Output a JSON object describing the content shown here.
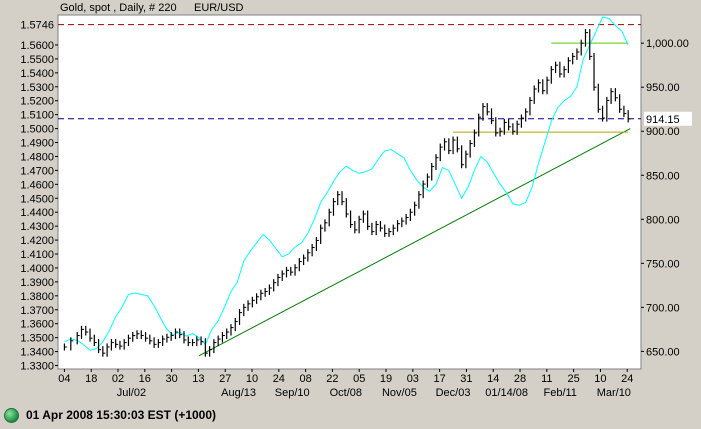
{
  "chart_data": {
    "type": "line",
    "title_symbol": "Gold, spot , Daily, # 220",
    "title_overlay": "EUR/USD",
    "left_axis": {
      "ylim": [
        1.3275,
        1.5815
      ],
      "ticks": [
        "1.5600",
        "1.5500",
        "1.5400",
        "1.5300",
        "1.5200",
        "1.5100",
        "1.5000",
        "1.4900",
        "1.4800",
        "1.4700",
        "1.4600",
        "1.4500",
        "1.4400",
        "1.4300",
        "1.4200",
        "1.4100",
        "1.4000",
        "1.3900",
        "1.3800",
        "1.3700",
        "1.3600",
        "1.3500",
        "1.3400",
        "1.3300"
      ],
      "highlight_label": "1.5746",
      "highlight_value": 1.5746
    },
    "right_axis": {
      "ylim": [
        630,
        1032
      ],
      "ticks": [
        "1,000.00",
        "950.00",
        "900.00",
        "850.00",
        "800.00",
        "750.00",
        "700.00",
        "650.00"
      ],
      "highlight_label": "914.15",
      "highlight_value": 914.15
    },
    "x_ticks": [
      "04",
      "18",
      "02",
      "16",
      "30",
      "13",
      "27",
      "10",
      "24",
      "08",
      "22",
      "05",
      "19",
      "03",
      "17",
      "31",
      "14",
      "28",
      "11",
      "25",
      "10",
      "24"
    ],
    "x_month_labels": [
      "Jul/02",
      "Aug/13",
      "Sep/10",
      "Oct/08",
      "Nov/05",
      "Dec/03",
      "01/14/08",
      "Feb/11",
      "Mar/10"
    ],
    "series": [
      {
        "name": "Gold, spot",
        "color": "#000000",
        "axis": "right",
        "points": [
          [
            0,
            655
          ],
          [
            3,
            662
          ],
          [
            6,
            668
          ],
          [
            8,
            675
          ],
          [
            10,
            672
          ],
          [
            12,
            665
          ],
          [
            14,
            660
          ],
          [
            16,
            652
          ],
          [
            18,
            648
          ],
          [
            20,
            655
          ],
          [
            22,
            660
          ],
          [
            24,
            658
          ],
          [
            26,
            656
          ],
          [
            28,
            660
          ],
          [
            30,
            665
          ],
          [
            32,
            668
          ],
          [
            34,
            670
          ],
          [
            36,
            668
          ],
          [
            38,
            665
          ],
          [
            40,
            662
          ],
          [
            42,
            658
          ],
          [
            44,
            660
          ],
          [
            46,
            664
          ],
          [
            48,
            666
          ],
          [
            50,
            668
          ],
          [
            52,
            672
          ],
          [
            54,
            669
          ],
          [
            56,
            663
          ],
          [
            58,
            660
          ],
          [
            60,
            660
          ],
          [
            62,
            663
          ],
          [
            64,
            661
          ],
          [
            66,
            648
          ],
          [
            68,
            652
          ],
          [
            70,
            660
          ],
          [
            72,
            664
          ],
          [
            74,
            668
          ],
          [
            76,
            672
          ],
          [
            78,
            677
          ],
          [
            80,
            684
          ],
          [
            82,
            694
          ],
          [
            84,
            700
          ],
          [
            86,
            704
          ],
          [
            88,
            708
          ],
          [
            90,
            712
          ],
          [
            92,
            716
          ],
          [
            94,
            718
          ],
          [
            96,
            722
          ],
          [
            98,
            728
          ],
          [
            100,
            734
          ],
          [
            102,
            738
          ],
          [
            104,
            742
          ],
          [
            106,
            740
          ],
          [
            108,
            745
          ],
          [
            110,
            752
          ],
          [
            112,
            756
          ],
          [
            114,
            762
          ],
          [
            116,
            768
          ],
          [
            118,
            776
          ],
          [
            120,
            790
          ],
          [
            122,
            796
          ],
          [
            124,
            808
          ],
          [
            126,
            820
          ],
          [
            128,
            828
          ],
          [
            130,
            820
          ],
          [
            132,
            806
          ],
          [
            134,
            794
          ],
          [
            136,
            788
          ],
          [
            138,
            800
          ],
          [
            140,
            806
          ],
          [
            142,
            792
          ],
          [
            144,
            786
          ],
          [
            146,
            794
          ],
          [
            148,
            790
          ],
          [
            150,
            784
          ],
          [
            152,
            786
          ],
          [
            154,
            790
          ],
          [
            156,
            795
          ],
          [
            158,
            798
          ],
          [
            160,
            802
          ],
          [
            162,
            808
          ],
          [
            164,
            816
          ],
          [
            166,
            828
          ],
          [
            168,
            840
          ],
          [
            170,
            848
          ],
          [
            172,
            860
          ],
          [
            174,
            870
          ],
          [
            176,
            882
          ],
          [
            178,
            888
          ],
          [
            180,
            878
          ],
          [
            182,
            890
          ],
          [
            184,
            880
          ],
          [
            186,
            862
          ],
          [
            188,
            874
          ],
          [
            190,
            886
          ],
          [
            192,
            898
          ],
          [
            194,
            916
          ],
          [
            196,
            928
          ],
          [
            198,
            922
          ],
          [
            200,
            912
          ],
          [
            202,
            898
          ],
          [
            204,
            900
          ],
          [
            206,
            910
          ],
          [
            208,
            905
          ],
          [
            210,
            900
          ],
          [
            212,
            908
          ],
          [
            214,
            915
          ],
          [
            216,
            922
          ],
          [
            218,
            935
          ],
          [
            220,
            948
          ],
          [
            222,
            955
          ],
          [
            224,
            946
          ],
          [
            226,
            958
          ],
          [
            228,
            970
          ],
          [
            230,
            975
          ],
          [
            232,
            965
          ],
          [
            234,
            970
          ],
          [
            236,
            980
          ],
          [
            238,
            985
          ],
          [
            240,
            990
          ],
          [
            242,
            1000
          ],
          [
            244,
            1012
          ],
          [
            246,
            985
          ],
          [
            248,
            950
          ],
          [
            250,
            925
          ],
          [
            252,
            915
          ],
          [
            254,
            935
          ],
          [
            256,
            945
          ],
          [
            258,
            938
          ],
          [
            260,
            925
          ],
          [
            262,
            920
          ],
          [
            264,
            914
          ]
        ]
      },
      {
        "name": "EUR/USD",
        "color": "#00ffff",
        "axis": "left",
        "points": [
          [
            0,
            1.347
          ],
          [
            3,
            1.349
          ],
          [
            6,
            1.348
          ],
          [
            9,
            1.345
          ],
          [
            12,
            1.341
          ],
          [
            15,
            1.342
          ],
          [
            18,
            1.347
          ],
          [
            21,
            1.355
          ],
          [
            24,
            1.365
          ],
          [
            27,
            1.372
          ],
          [
            30,
            1.381
          ],
          [
            33,
            1.382
          ],
          [
            36,
            1.381
          ],
          [
            39,
            1.38
          ],
          [
            42,
            1.373
          ],
          [
            45,
            1.364
          ],
          [
            48,
            1.356
          ],
          [
            51,
            1.352
          ],
          [
            54,
            1.354
          ],
          [
            57,
            1.351
          ],
          [
            60,
            1.353
          ],
          [
            63,
            1.35
          ],
          [
            66,
            1.345
          ],
          [
            69,
            1.356
          ],
          [
            72,
            1.362
          ],
          [
            75,
            1.372
          ],
          [
            78,
            1.383
          ],
          [
            81,
            1.39
          ],
          [
            84,
            1.405
          ],
          [
            87,
            1.412
          ],
          [
            90,
            1.418
          ],
          [
            93,
            1.424
          ],
          [
            96,
            1.42
          ],
          [
            99,
            1.414
          ],
          [
            102,
            1.408
          ],
          [
            105,
            1.41
          ],
          [
            108,
            1.415
          ],
          [
            111,
            1.418
          ],
          [
            114,
            1.425
          ],
          [
            117,
            1.435
          ],
          [
            120,
            1.447
          ],
          [
            123,
            1.454
          ],
          [
            126,
            1.462
          ],
          [
            129,
            1.469
          ],
          [
            132,
            1.473
          ],
          [
            135,
            1.47
          ],
          [
            138,
            1.468
          ],
          [
            141,
            1.469
          ],
          [
            144,
            1.471
          ],
          [
            147,
            1.478
          ],
          [
            150,
            1.484
          ],
          [
            153,
            1.485
          ],
          [
            156,
            1.482
          ],
          [
            159,
            1.479
          ],
          [
            162,
            1.47
          ],
          [
            165,
            1.463
          ],
          [
            168,
            1.458
          ],
          [
            171,
            1.455
          ],
          [
            174,
            1.46
          ],
          [
            177,
            1.472
          ],
          [
            180,
            1.47
          ],
          [
            183,
            1.46
          ],
          [
            186,
            1.45
          ],
          [
            189,
            1.458
          ],
          [
            192,
            1.47
          ],
          [
            195,
            1.48
          ],
          [
            198,
            1.476
          ],
          [
            201,
            1.468
          ],
          [
            204,
            1.46
          ],
          [
            207,
            1.454
          ],
          [
            210,
            1.446
          ],
          [
            213,
            1.445
          ],
          [
            216,
            1.447
          ],
          [
            219,
            1.458
          ],
          [
            222,
            1.475
          ],
          [
            225,
            1.49
          ],
          [
            228,
            1.505
          ],
          [
            231,
            1.515
          ],
          [
            234,
            1.52
          ],
          [
            237,
            1.523
          ],
          [
            240,
            1.53
          ],
          [
            243,
            1.55
          ],
          [
            246,
            1.56
          ],
          [
            249,
            1.57
          ],
          [
            252,
            1.58
          ],
          [
            255,
            1.579
          ],
          [
            258,
            1.574
          ],
          [
            261,
            1.57
          ],
          [
            264,
            1.56
          ]
        ]
      }
    ],
    "trendlines": [
      {
        "name": "rising-support",
        "color": "#008000",
        "axis": "right",
        "from": [
          63,
          645
        ],
        "to": [
          265,
          903
        ]
      },
      {
        "name": "resistance-1000",
        "color": "#55cc00",
        "axis": "right",
        "from": [
          228,
          1000
        ],
        "to": [
          264,
          1000
        ]
      },
      {
        "name": "support-900",
        "color": "#b8a000",
        "axis": "right",
        "from": [
          182,
          899
        ],
        "to": [
          264,
          899
        ]
      }
    ],
    "hlines": [
      {
        "name": "eurusd-high",
        "color": "#990000",
        "axis": "left",
        "value": 1.5746
      },
      {
        "name": "gold-last",
        "color": "#000099",
        "axis": "right",
        "value": 914.15
      }
    ],
    "grid": false,
    "legend": "top-left"
  },
  "status": {
    "timestamp": "01 Apr 2008 15:30:03",
    "timezone": "EST (+1000)"
  }
}
